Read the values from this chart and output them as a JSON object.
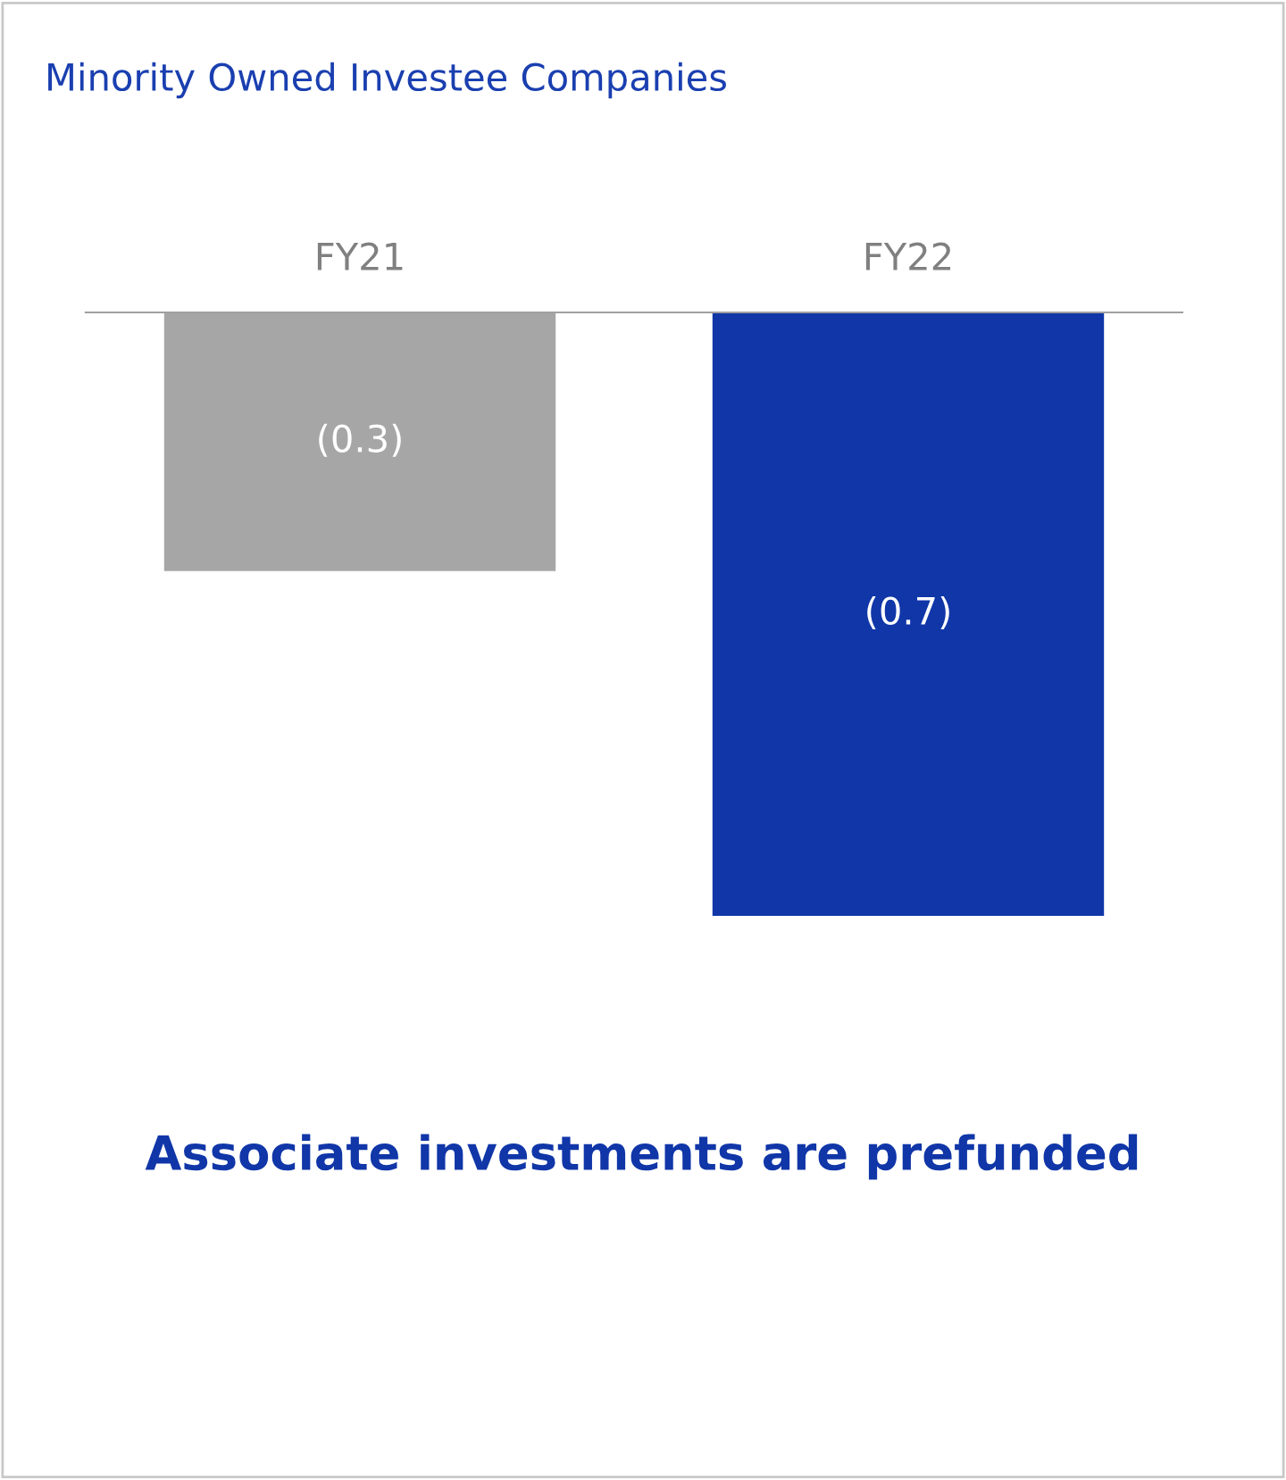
{
  "chart_data": {
    "type": "bar",
    "title": "Minority Owned Investee Companies",
    "categories": [
      "FY21",
      "FY22"
    ],
    "values": [
      -0.3,
      -0.7
    ],
    "colors": [
      "#a6a6a6",
      "#1036a8"
    ],
    "value_labels": [
      "(0.3)",
      "(0.7)"
    ],
    "annotations": [
      "Associate investments are prefunded"
    ],
    "tick_labels": "x",
    "grid": false,
    "legend": false
  }
}
